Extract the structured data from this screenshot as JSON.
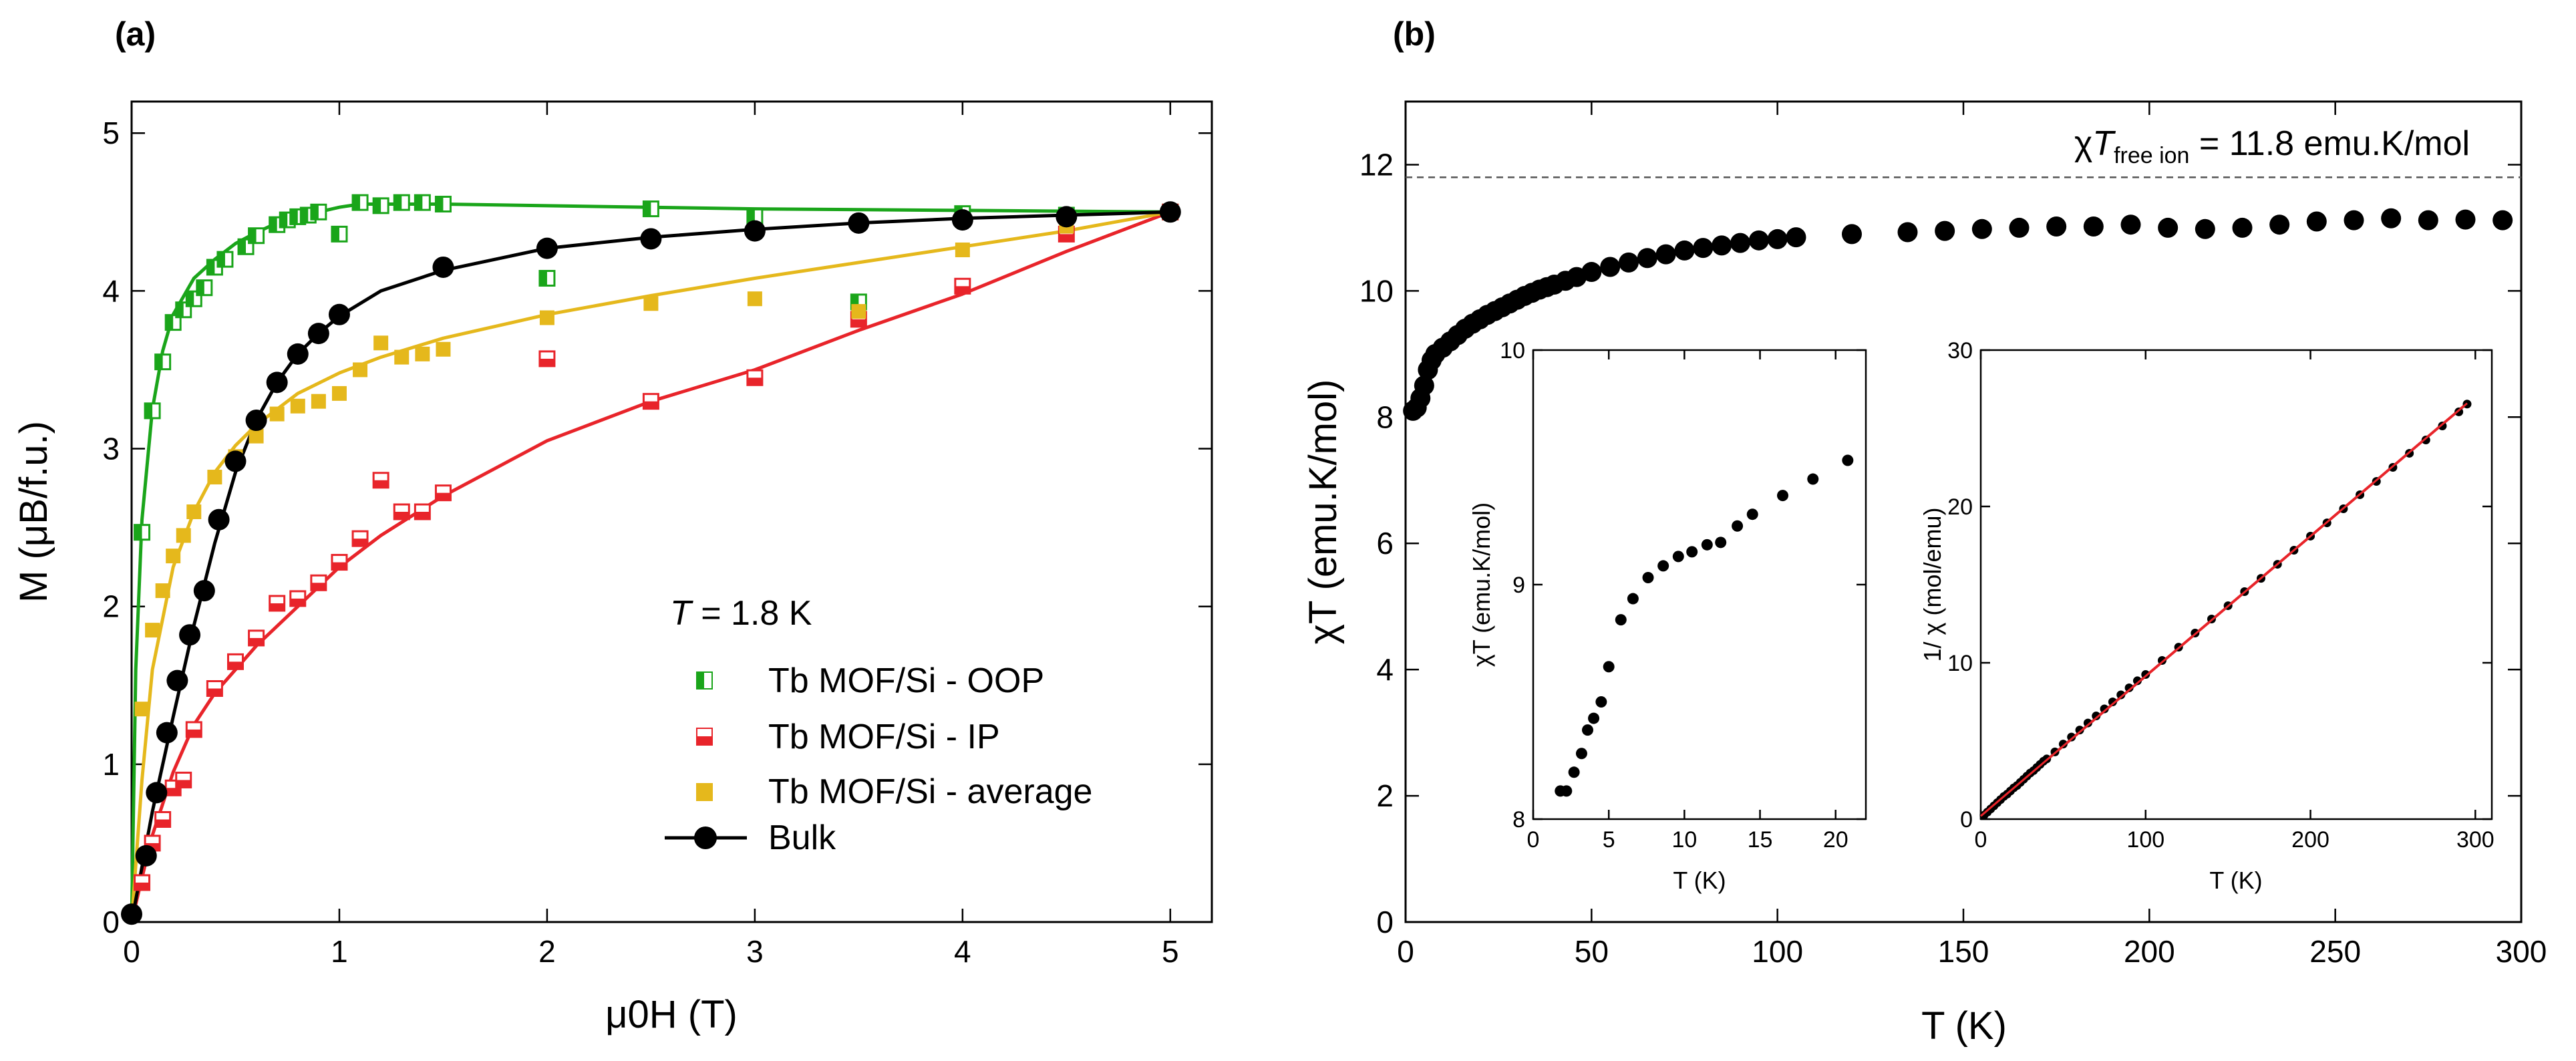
{
  "figure": {
    "panel_a_label": "(a)",
    "panel_b_label": "(b)",
    "temperature_note": {
      "symbol": "T",
      "text": " = 1.8 K"
    },
    "free_ion_note": {
      "prefix": "χ",
      "symbol": "T",
      "subscript": "free ion",
      "value": " = 11.8 emu.K/mol"
    }
  },
  "chart_data": [
    {
      "id": "a",
      "type": "line",
      "xlabel": "μ0H (T)",
      "ylabel": "M (μB/f.u.)",
      "xlim": [
        0,
        5.2
      ],
      "ylim": [
        0,
        5.2
      ],
      "xticks": [
        0,
        1,
        2,
        3,
        4,
        5
      ],
      "yticks": [
        0,
        1,
        2,
        3,
        4,
        5
      ],
      "legend": [
        "Tb MOF/Si - OOP",
        "Tb MOF/Si - IP",
        "Tb MOF/Si - average",
        "Bulk"
      ],
      "colors": {
        "oop": "#1aa51a",
        "ip": "#e8242a",
        "avg": "#e5b81c",
        "bulk": "#000000"
      },
      "series": [
        {
          "name": "Tb MOF/Si - OOP",
          "marker": "half-square",
          "x": [
            0.05,
            0.1,
            0.15,
            0.2,
            0.25,
            0.3,
            0.35,
            0.4,
            0.45,
            0.55,
            0.6,
            0.7,
            0.75,
            0.8,
            0.85,
            0.9,
            1.0,
            1.1,
            1.2,
            1.3,
            1.4,
            1.5,
            2.0,
            2.5,
            3.0,
            3.5,
            4.0,
            4.5,
            5.0
          ],
          "y": [
            2.47,
            3.24,
            3.55,
            3.8,
            3.88,
            3.95,
            4.02,
            4.15,
            4.2,
            4.28,
            4.35,
            4.42,
            4.45,
            4.47,
            4.48,
            4.5,
            4.36,
            4.56,
            4.54,
            4.56,
            4.56,
            4.55,
            4.08,
            4.52,
            4.47,
            3.93,
            4.49,
            4.48,
            4.5
          ]
        },
        {
          "name": "Tb MOF/Si - OOP (fit)",
          "marker": "none",
          "x": [
            0.0,
            0.02,
            0.05,
            0.1,
            0.15,
            0.2,
            0.3,
            0.4,
            0.5,
            0.6,
            0.7,
            0.8,
            0.9,
            1.0,
            1.1,
            1.2,
            1.5,
            2.0,
            3.0,
            4.0,
            5.0
          ],
          "y": [
            0.0,
            1.6,
            2.55,
            3.25,
            3.62,
            3.85,
            4.08,
            4.2,
            4.3,
            4.37,
            4.43,
            4.47,
            4.5,
            4.53,
            4.55,
            4.55,
            4.55,
            4.54,
            4.52,
            4.51,
            4.5
          ]
        },
        {
          "name": "Tb MOF/Si - IP",
          "marker": "half-square",
          "x": [
            0.05,
            0.1,
            0.15,
            0.2,
            0.25,
            0.3,
            0.4,
            0.5,
            0.6,
            0.7,
            0.8,
            0.9,
            1.0,
            1.1,
            1.2,
            1.3,
            1.4,
            1.5,
            2.0,
            2.5,
            3.0,
            3.5,
            4.0,
            4.5,
            5.0
          ],
          "y": [
            0.25,
            0.5,
            0.65,
            0.85,
            0.9,
            1.22,
            1.48,
            1.65,
            1.8,
            2.02,
            2.05,
            2.15,
            2.28,
            2.43,
            2.8,
            2.6,
            2.6,
            2.72,
            3.57,
            3.3,
            3.45,
            3.82,
            4.03,
            4.36,
            4.5
          ]
        },
        {
          "name": "Tb MOF/Si - IP (fit)",
          "marker": "none",
          "x": [
            0.0,
            0.05,
            0.1,
            0.2,
            0.3,
            0.4,
            0.5,
            0.6,
            0.8,
            1.0,
            1.2,
            1.5,
            2.0,
            2.5,
            3.0,
            3.5,
            4.0,
            4.5,
            5.0
          ],
          "y": [
            0.0,
            0.28,
            0.55,
            0.95,
            1.25,
            1.45,
            1.6,
            1.75,
            2.0,
            2.25,
            2.45,
            2.7,
            3.05,
            3.3,
            3.5,
            3.75,
            3.98,
            4.25,
            4.5
          ]
        },
        {
          "name": "Tb MOF/Si - average",
          "marker": "square",
          "x": [
            0.05,
            0.1,
            0.15,
            0.2,
            0.25,
            0.3,
            0.4,
            0.5,
            0.6,
            0.7,
            0.8,
            0.9,
            1.0,
            1.1,
            1.2,
            1.3,
            1.4,
            1.5,
            2.0,
            2.5,
            3.0,
            3.5,
            4.0,
            4.5
          ],
          "y": [
            1.35,
            1.85,
            2.1,
            2.32,
            2.45,
            2.6,
            2.82,
            2.95,
            3.08,
            3.22,
            3.27,
            3.3,
            3.35,
            3.5,
            3.67,
            3.58,
            3.6,
            3.63,
            3.83,
            3.92,
            3.95,
            3.87,
            4.26,
            4.41
          ]
        },
        {
          "name": "Tb MOF/Si - average (fit)",
          "marker": "none",
          "x": [
            0.0,
            0.05,
            0.1,
            0.2,
            0.3,
            0.4,
            0.5,
            0.6,
            0.7,
            0.8,
            1.0,
            1.2,
            1.5,
            2.0,
            2.5,
            3.0,
            3.5,
            4.0,
            4.5,
            5.0
          ],
          "y": [
            0.0,
            0.9,
            1.6,
            2.25,
            2.6,
            2.85,
            3.02,
            3.15,
            3.25,
            3.35,
            3.48,
            3.58,
            3.7,
            3.85,
            3.97,
            4.08,
            4.18,
            4.28,
            4.38,
            4.5
          ]
        },
        {
          "name": "Bulk",
          "marker": "circle",
          "x": [
            0.0,
            0.07,
            0.12,
            0.17,
            0.22,
            0.28,
            0.35,
            0.42,
            0.5,
            0.6,
            0.7,
            0.8,
            0.9,
            1.0,
            1.5,
            2.0,
            2.5,
            3.0,
            3.5,
            4.0,
            4.5,
            5.0
          ],
          "y": [
            0.05,
            0.42,
            0.82,
            1.2,
            1.53,
            1.82,
            2.1,
            2.55,
            2.92,
            3.18,
            3.42,
            3.6,
            3.73,
            3.85,
            4.15,
            4.27,
            4.33,
            4.38,
            4.43,
            4.45,
            4.47,
            4.5
          ]
        },
        {
          "name": "Bulk (fit)",
          "marker": "none",
          "x": [
            0.0,
            0.1,
            0.2,
            0.3,
            0.4,
            0.5,
            0.6,
            0.7,
            0.8,
            0.9,
            1.0,
            1.2,
            1.5,
            2.0,
            2.5,
            3.0,
            3.5,
            4.0,
            4.5,
            5.0
          ],
          "y": [
            0.0,
            0.7,
            1.3,
            1.88,
            2.4,
            2.85,
            3.18,
            3.42,
            3.6,
            3.73,
            3.84,
            4.0,
            4.13,
            4.27,
            4.34,
            4.39,
            4.43,
            4.46,
            4.48,
            4.5
          ]
        }
      ]
    },
    {
      "id": "b",
      "type": "scatter",
      "xlabel": "T (K)",
      "ylabel": "χT (emu.K/mol)",
      "xlim": [
        0,
        300
      ],
      "ylim": [
        0,
        13
      ],
      "xticks": [
        0,
        50,
        100,
        150,
        200,
        250,
        300
      ],
      "yticks": [
        0,
        2,
        4,
        6,
        8,
        10,
        12
      ],
      "reference_line": {
        "y": 11.8,
        "style": "dashed"
      },
      "series": [
        {
          "name": "χT",
          "x": [
            2,
            3,
            4,
            5,
            6,
            7,
            8,
            10,
            12,
            14,
            16,
            18,
            20,
            22,
            24,
            26,
            28,
            30,
            32,
            34,
            36,
            38,
            40,
            43,
            46,
            50,
            55,
            60,
            65,
            70,
            75,
            80,
            85,
            90,
            95,
            100,
            105,
            120,
            135,
            145,
            155,
            165,
            175,
            185,
            195,
            205,
            215,
            225,
            235,
            245,
            255,
            265,
            275,
            285,
            295
          ],
          "y": [
            8.1,
            8.15,
            8.3,
            8.5,
            8.75,
            8.9,
            9.0,
            9.1,
            9.2,
            9.3,
            9.4,
            9.48,
            9.55,
            9.62,
            9.68,
            9.74,
            9.8,
            9.86,
            9.92,
            9.97,
            10.02,
            10.06,
            10.1,
            10.16,
            10.22,
            10.3,
            10.38,
            10.45,
            10.52,
            10.58,
            10.64,
            10.68,
            10.72,
            10.76,
            10.8,
            10.82,
            10.85,
            10.9,
            10.93,
            10.95,
            10.98,
            11.0,
            11.02,
            11.02,
            11.05,
            11.0,
            10.98,
            11.0,
            11.05,
            11.1,
            11.12,
            11.15,
            11.12,
            11.13,
            11.12
          ]
        }
      ]
    },
    {
      "id": "b-inset-left",
      "type": "scatter",
      "xlabel": "T (K)",
      "ylabel": "χT (emu.K/mol)",
      "xlim": [
        0,
        22
      ],
      "ylim": [
        8,
        10
      ],
      "xticks": [
        0,
        5,
        10,
        15,
        20
      ],
      "yticks": [
        8,
        9,
        10
      ],
      "series": [
        {
          "name": "χT low T",
          "x": [
            1.8,
            2.2,
            2.7,
            3.2,
            3.6,
            4.0,
            4.5,
            5.0,
            5.8,
            6.6,
            7.6,
            8.6,
            9.6,
            10.5,
            11.5,
            12.4,
            13.5,
            14.5,
            16.5,
            18.5,
            20.8
          ],
          "y": [
            8.12,
            8.12,
            8.2,
            8.28,
            8.38,
            8.43,
            8.5,
            8.65,
            8.85,
            8.94,
            9.03,
            9.08,
            9.12,
            9.14,
            9.17,
            9.18,
            9.25,
            9.3,
            9.38,
            9.45,
            9.53
          ]
        }
      ]
    },
    {
      "id": "b-inset-right",
      "type": "scatter",
      "xlabel": "T (K)",
      "ylabel": "1/ χ (mol/emu)",
      "xlim": [
        0,
        310
      ],
      "ylim": [
        0,
        30
      ],
      "xticks": [
        0,
        100,
        200,
        300
      ],
      "yticks": [
        0,
        10,
        20,
        30
      ],
      "fit_line": {
        "x": [
          0,
          295
        ],
        "y": [
          0.2,
          26.6
        ]
      },
      "series": [
        {
          "name": "1/χ",
          "x": [
            2,
            4,
            6,
            8,
            10,
            12,
            14,
            16,
            18,
            20,
            22,
            24,
            26,
            28,
            30,
            32,
            34,
            36,
            38,
            40,
            45,
            50,
            55,
            60,
            65,
            70,
            75,
            80,
            85,
            90,
            95,
            100,
            110,
            120,
            130,
            140,
            150,
            160,
            170,
            180,
            190,
            200,
            210,
            220,
            230,
            240,
            250,
            260,
            270,
            280,
            290,
            295
          ],
          "y": [
            0.25,
            0.45,
            0.65,
            0.85,
            1.05,
            1.25,
            1.45,
            1.6,
            1.8,
            2.0,
            2.15,
            2.35,
            2.55,
            2.75,
            2.95,
            3.1,
            3.3,
            3.5,
            3.7,
            3.85,
            4.3,
            4.8,
            5.25,
            5.7,
            6.15,
            6.6,
            7.05,
            7.5,
            7.95,
            8.4,
            8.85,
            9.25,
            10.15,
            11.0,
            11.9,
            12.8,
            13.65,
            14.55,
            15.4,
            16.3,
            17.2,
            18.1,
            18.95,
            19.85,
            20.75,
            21.6,
            22.5,
            23.4,
            24.25,
            25.15,
            26.05,
            26.55
          ]
        }
      ]
    }
  ]
}
